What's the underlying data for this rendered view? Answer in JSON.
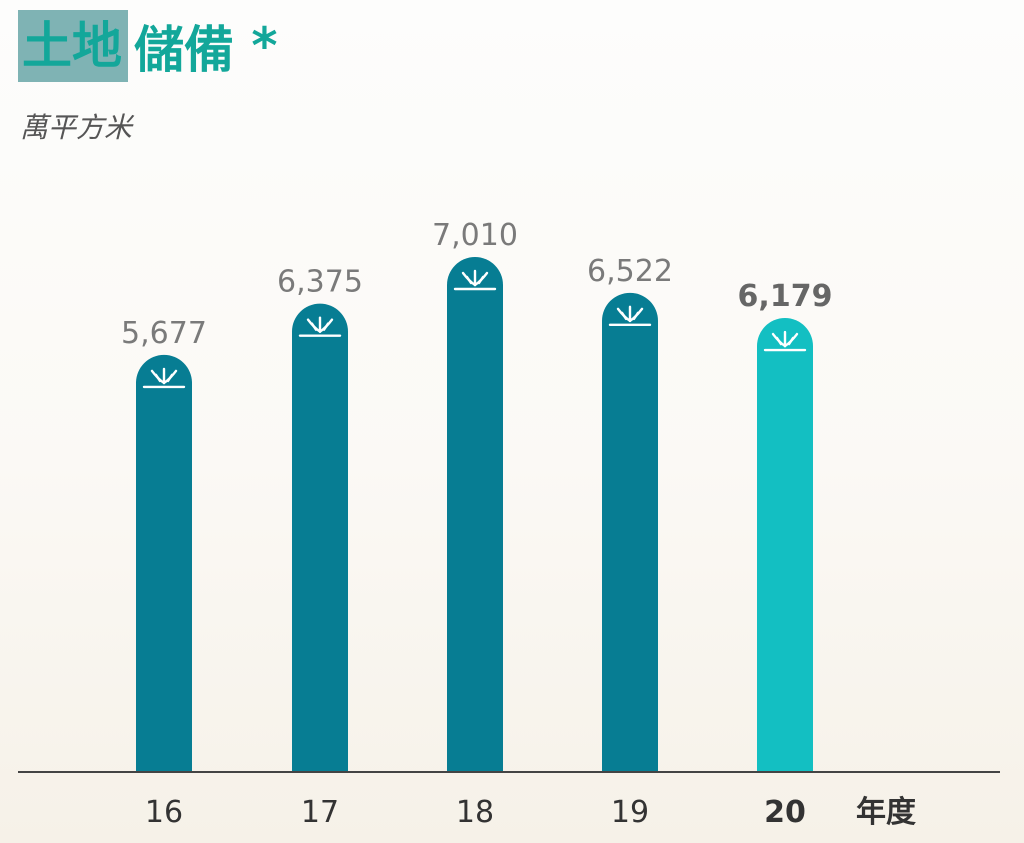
{
  "title_highlight": "土地",
  "title_rest": "儲備",
  "title_mark": "*",
  "subtitle": "萬平方米",
  "x_unit": "年度",
  "colors": {
    "bar": "#077d93",
    "bar_highlight": "#13bfc2",
    "title": "#13a79a",
    "title_bg": "#7fb3b4",
    "axis": "#444444"
  },
  "icon": "sprout-icon",
  "chart_data": {
    "type": "bar",
    "categories": [
      "16",
      "17",
      "18",
      "19",
      "20"
    ],
    "values": [
      5677,
      6375,
      7010,
      6522,
      6179
    ],
    "value_labels": [
      "5,677",
      "6,375",
      "7,010",
      "6,522",
      "6,179"
    ],
    "highlight_index": 4,
    "title": "土地儲備 *",
    "xlabel": "年度",
    "ylabel": "萬平方米",
    "ylim": [
      0,
      8000
    ],
    "grid": false,
    "legend": "none"
  }
}
